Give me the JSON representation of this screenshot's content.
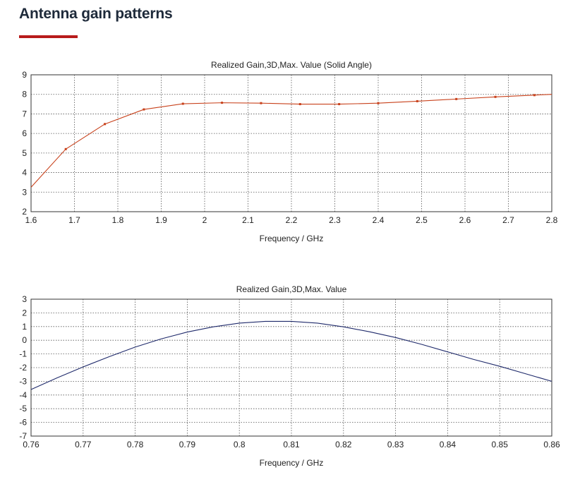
{
  "page": {
    "heading": "Antenna gain patterns",
    "accent_color": "#b81c1c"
  },
  "chart_data": [
    {
      "type": "line",
      "title": "Realized Gain,3D,Max. Value (Solid Angle)",
      "xlabel": "Frequency / GHz",
      "ylabel": "",
      "xlim": [
        1.6,
        2.8
      ],
      "ylim": [
        2,
        9
      ],
      "xticks": [
        "1.6",
        "1.7",
        "1.8",
        "1.9",
        "2",
        "2.1",
        "2.2",
        "2.3",
        "2.4",
        "2.5",
        "2.6",
        "2.7",
        "2.8"
      ],
      "yticks": [
        "2",
        "3",
        "4",
        "5",
        "6",
        "7",
        "8",
        "9"
      ],
      "grid": true,
      "markers": true,
      "series": [
        {
          "name": "",
          "color": "#c8411b",
          "x": [
            1.6,
            1.68,
            1.77,
            1.86,
            1.95,
            2.04,
            2.13,
            2.22,
            2.31,
            2.4,
            2.49,
            2.58,
            2.67,
            2.76,
            2.8
          ],
          "y": [
            3.25,
            5.2,
            6.48,
            7.23,
            7.52,
            7.57,
            7.55,
            7.5,
            7.5,
            7.55,
            7.65,
            7.76,
            7.87,
            7.96,
            8.0
          ]
        }
      ]
    },
    {
      "type": "line",
      "title": "Realized Gain,3D,Max. Value",
      "xlabel": "Frequency / GHz",
      "ylabel": "",
      "xlim": [
        0.76,
        0.86
      ],
      "ylim": [
        -7,
        3
      ],
      "xticks": [
        "0.76",
        "0.77",
        "0.78",
        "0.79",
        "0.8",
        "0.81",
        "0.82",
        "0.83",
        "0.84",
        "0.85",
        "0.86"
      ],
      "yticks": [
        "3",
        "2",
        "1",
        "0",
        "-1",
        "-2",
        "-3",
        "-4",
        "-5",
        "-6",
        "-7"
      ],
      "grid": true,
      "markers": false,
      "series": [
        {
          "name": "",
          "color": "#1f2a6b",
          "x": [
            0.76,
            0.765,
            0.77,
            0.775,
            0.78,
            0.785,
            0.79,
            0.795,
            0.8,
            0.805,
            0.81,
            0.815,
            0.82,
            0.825,
            0.83,
            0.835,
            0.84,
            0.845,
            0.85,
            0.855,
            0.86
          ],
          "y": [
            -3.6,
            -2.75,
            -1.95,
            -1.2,
            -0.5,
            0.1,
            0.6,
            0.98,
            1.25,
            1.38,
            1.38,
            1.25,
            0.98,
            0.62,
            0.2,
            -0.3,
            -0.85,
            -1.4,
            -1.9,
            -2.45,
            -3.0
          ]
        }
      ]
    }
  ]
}
